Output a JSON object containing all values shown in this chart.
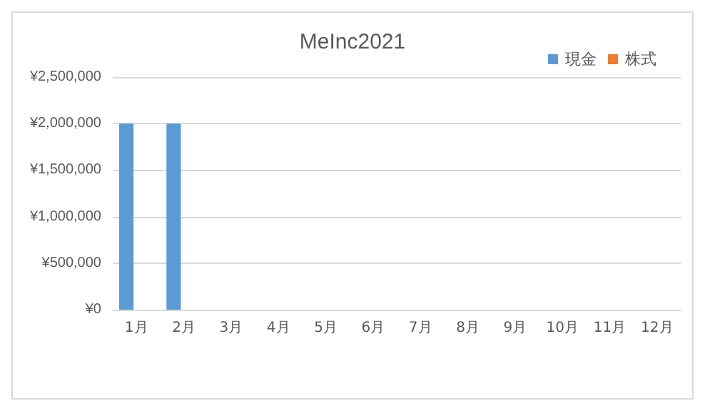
{
  "chart_data": {
    "type": "bar",
    "title": "MeInc2021",
    "categories": [
      "1月",
      "2月",
      "3月",
      "4月",
      "5月",
      "6月",
      "7月",
      "8月",
      "9月",
      "10月",
      "11月",
      "12月"
    ],
    "series": [
      {
        "name": "現金",
        "color": "#5b9bd5",
        "values": [
          2000000,
          2000000,
          null,
          null,
          null,
          null,
          null,
          null,
          null,
          null,
          null,
          null
        ]
      },
      {
        "name": "株式",
        "color": "#ed7d31",
        "values": [
          null,
          null,
          null,
          null,
          null,
          null,
          null,
          null,
          null,
          null,
          null,
          null
        ]
      }
    ],
    "ylim": [
      0,
      2500000
    ],
    "yticks": [
      {
        "value": 0,
        "label": "¥0"
      },
      {
        "value": 500000,
        "label": "¥500,000"
      },
      {
        "value": 1000000,
        "label": "¥1,000,000"
      },
      {
        "value": 1500000,
        "label": "¥1,500,000"
      },
      {
        "value": 2000000,
        "label": "¥2,000,000"
      },
      {
        "value": 2500000,
        "label": "¥2,500,000"
      }
    ],
    "grid": "y",
    "legend": "top right"
  }
}
